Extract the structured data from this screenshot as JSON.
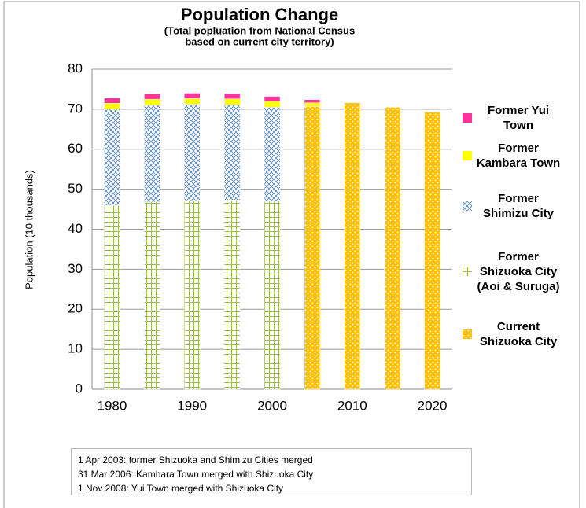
{
  "chart_data": {
    "type": "bar",
    "stacked": true,
    "title": "Population Change",
    "subtitle": [
      "(Total popluation from National Census",
      "based on current city territory)"
    ],
    "y_label": "Population (10 thousands)",
    "categories": [
      "1980",
      null,
      "1990",
      null,
      "2000",
      null,
      "2010",
      null,
      "2020"
    ],
    "series": [
      {
        "name": "Current Shizuoka City",
        "color": "#ffc000",
        "pattern": "dots",
        "values": [
          null,
          null,
          null,
          null,
          null,
          70.7,
          71.6,
          70.5,
          69.3
        ]
      },
      {
        "name": "Former Shizuoka City (Aoi & Suruga)",
        "color": "#9bbb59",
        "pattern": "grid",
        "values": [
          46.0,
          46.8,
          47.2,
          47.3,
          47.0,
          null,
          null,
          null,
          null
        ]
      },
      {
        "name": "Former Shimizu City",
        "color": "#4f81bd",
        "pattern": "crosshatch",
        "values": [
          24.0,
          24.2,
          24.0,
          23.8,
          23.5,
          null,
          null,
          null,
          null
        ]
      },
      {
        "name": "Former Kambara Town",
        "color": "#ffff00",
        "pattern": null,
        "values": [
          1.5,
          1.5,
          1.5,
          1.5,
          1.5,
          0.9,
          null,
          null,
          null
        ]
      },
      {
        "name": "Former Yui Town",
        "color": "#ff3399",
        "pattern": null,
        "values": [
          1.3,
          1.3,
          1.3,
          1.3,
          1.2,
          0.8,
          null,
          null,
          null
        ]
      }
    ],
    "ylim": [
      0,
      80
    ],
    "yticks": [
      0,
      10,
      20,
      30,
      40,
      50,
      60,
      70,
      80
    ],
    "grid": true,
    "legend": "right",
    "annotations": [
      "1 Apr 2003: former Shizuoka and Shimizu Cities merged",
      "31 Mar 2006: Kambara Town merged with Shizuoka City",
      "1 Nov 2008: Yui Town merged with Shizuoka City"
    ]
  }
}
